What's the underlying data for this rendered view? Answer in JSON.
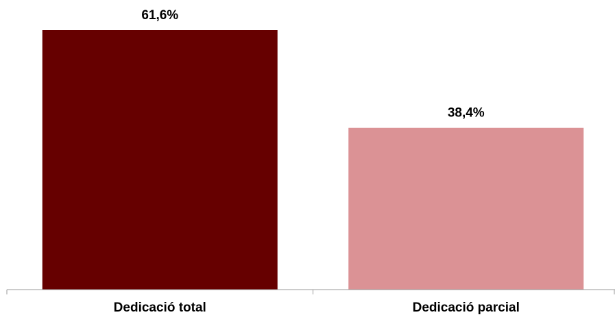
{
  "chart_data": {
    "type": "bar",
    "categories": [
      "Dedicació total",
      "Dedicació parcial"
    ],
    "values": [
      61.6,
      38.4
    ],
    "value_labels": [
      "61,6%",
      "38,4%"
    ],
    "colors": [
      "#660000",
      "#db9295"
    ],
    "title": "",
    "xlabel": "",
    "ylabel": "",
    "ylim": [
      0,
      100
    ],
    "grid": false,
    "legend": "none"
  }
}
